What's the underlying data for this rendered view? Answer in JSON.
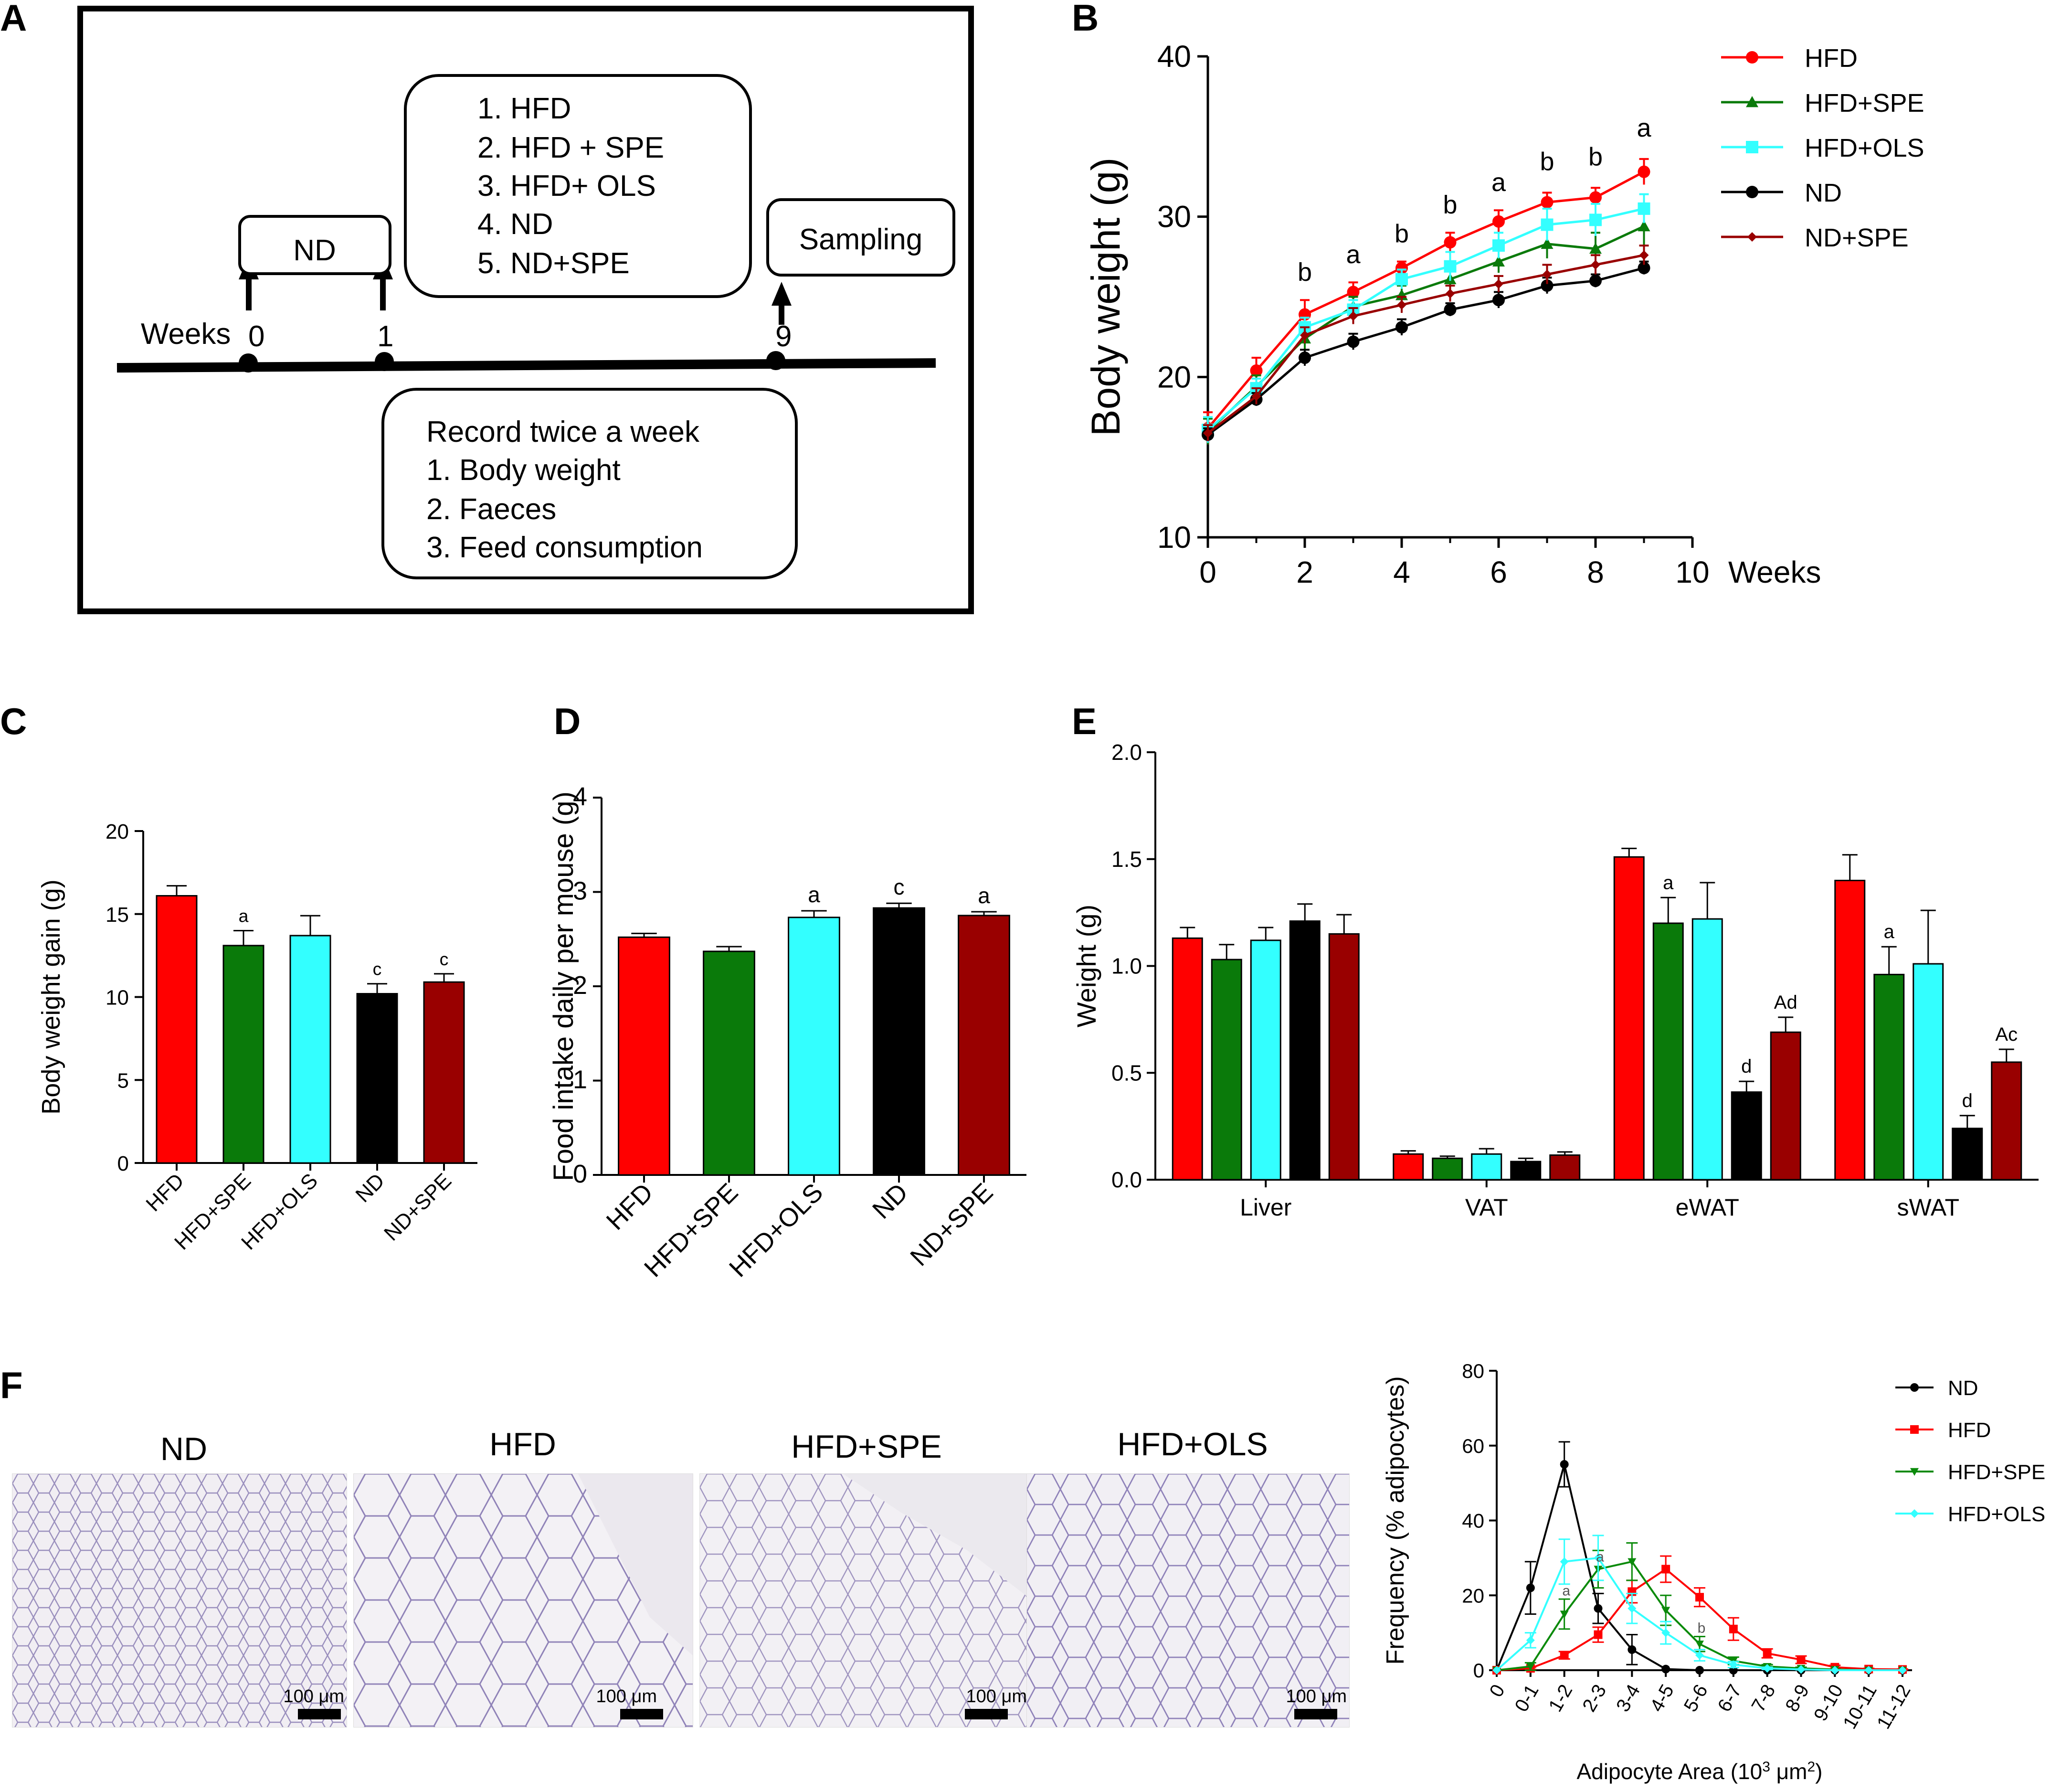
{
  "panel_labels": {
    "a": "A",
    "b": "B",
    "c": "C",
    "d": "D",
    "e": "E",
    "f": "F"
  },
  "panel_a": {
    "weeks_label": "Weeks",
    "timeline_ticks": [
      "0",
      "1",
      "9"
    ],
    "nd_box": "ND",
    "groups_box": [
      "1. HFD",
      "2. HFD + SPE",
      "3. HFD+ OLS",
      "4. ND",
      "5. ND+SPE"
    ],
    "sampling_box": "Sampling",
    "record_box": [
      "Record twice a week",
      "1. Body weight",
      "2. Faeces",
      "3. Feed consumption"
    ]
  },
  "colors": {
    "HFD": "#ff0000",
    "HFD+SPE": "#0a7a0a",
    "HFD+OLS": "#33ffff",
    "ND": "#000000",
    "ND+SPE": "#990000",
    "F_HFD+SPE": "#0a8a0a"
  },
  "micrographs": {
    "titles": [
      "ND",
      "HFD",
      "HFD+SPE",
      "HFD+OLS"
    ],
    "scale_label": "100 μm"
  },
  "chart_data": [
    {
      "id": "B",
      "type": "line",
      "ylabel": "Body weight (g)",
      "xlabel": "Weeks",
      "xlim": [
        0,
        10
      ],
      "ylim": [
        10,
        40
      ],
      "xticks": [
        "0",
        "2",
        "4",
        "6",
        "8",
        "10"
      ],
      "yticks": [
        "10",
        "20",
        "30",
        "40"
      ],
      "x": [
        0,
        1,
        2,
        3,
        4,
        5,
        6,
        7,
        8,
        9
      ],
      "series": [
        {
          "name": "HFD",
          "values": [
            16.8,
            20.4,
            23.9,
            25.3,
            26.8,
            28.4,
            29.7,
            30.9,
            31.2,
            32.8
          ],
          "errors": [
            1.0,
            0.8,
            0.9,
            0.6,
            0.4,
            0.6,
            0.7,
            0.6,
            0.6,
            0.8
          ]
        },
        {
          "name": "HFD+SPE",
          "values": [
            16.6,
            19.4,
            22.4,
            24.4,
            25.1,
            26.1,
            27.2,
            28.3,
            28.0,
            29.4
          ],
          "errors": [
            0.8,
            0.7,
            0.8,
            0.6,
            0.6,
            0.7,
            0.7,
            0.9,
            1.0,
            1.4
          ]
        },
        {
          "name": "HFD+OLS",
          "values": [
            16.7,
            19.3,
            23.1,
            24.2,
            26.1,
            26.9,
            28.2,
            29.5,
            29.8,
            30.5
          ],
          "errors": [
            0.8,
            0.6,
            0.6,
            0.6,
            0.6,
            0.9,
            0.8,
            1.0,
            1.0,
            0.9
          ]
        },
        {
          "name": "ND",
          "values": [
            16.4,
            18.6,
            21.2,
            22.2,
            23.1,
            24.2,
            24.8,
            25.7,
            26.0,
            26.8
          ],
          "errors": [
            0.4,
            0.4,
            0.5,
            0.5,
            0.5,
            0.4,
            0.5,
            0.5,
            0.4,
            0.4
          ]
        },
        {
          "name": "ND+SPE",
          "values": [
            16.5,
            18.8,
            22.6,
            23.8,
            24.5,
            25.2,
            25.8,
            26.4,
            27.0,
            27.6
          ],
          "errors": [
            0.5,
            0.5,
            0.5,
            0.5,
            0.5,
            0.5,
            0.5,
            0.6,
            0.6,
            0.6
          ]
        }
      ],
      "annotations": [
        {
          "x": 2,
          "text": "b"
        },
        {
          "x": 3,
          "text": "a"
        },
        {
          "x": 4,
          "text": "b"
        },
        {
          "x": 5,
          "text": "b"
        },
        {
          "x": 6,
          "text": "a"
        },
        {
          "x": 7,
          "text": "b"
        },
        {
          "x": 8,
          "text": "b"
        },
        {
          "x": 9,
          "text": "a"
        }
      ],
      "legend": "top-right"
    },
    {
      "id": "C",
      "type": "bar",
      "ylabel": "Body weight gain (g)",
      "ylim": [
        0,
        20
      ],
      "yticks": [
        "0",
        "5",
        "10",
        "15",
        "20"
      ],
      "categories": [
        "HFD",
        "HFD+SPE",
        "HFD+OLS",
        "ND",
        "ND+SPE"
      ],
      "values": [
        16.1,
        13.1,
        13.7,
        10.2,
        10.9
      ],
      "errors": [
        0.6,
        0.9,
        1.2,
        0.6,
        0.5
      ],
      "labels": [
        "",
        "a",
        "",
        "c",
        "c"
      ]
    },
    {
      "id": "D",
      "type": "bar",
      "ylabel": "Food intake daily per mouse (g)",
      "ylim": [
        0,
        4
      ],
      "yticks": [
        "0",
        "1",
        "2",
        "3",
        "4"
      ],
      "categories": [
        "HFD",
        "HFD+SPE",
        "HFD+OLS",
        "ND",
        "ND+SPE"
      ],
      "values": [
        2.52,
        2.37,
        2.73,
        2.83,
        2.75
      ],
      "errors": [
        0.04,
        0.05,
        0.07,
        0.05,
        0.04
      ],
      "labels": [
        "",
        "",
        "a",
        "c",
        "a"
      ]
    },
    {
      "id": "E",
      "type": "bar",
      "ylabel": "Weight (g)",
      "ylim": [
        0,
        2.0
      ],
      "yticks": [
        "0.0",
        "0.5",
        "1.0",
        "1.5",
        "2.0"
      ],
      "categories": [
        "Liver",
        "VAT",
        "eWAT",
        "sWAT"
      ],
      "series": [
        {
          "name": "HFD",
          "values": [
            1.13,
            0.12,
            1.51,
            1.4
          ],
          "errors": [
            0.05,
            0.015,
            0.04,
            0.12
          ],
          "labels": [
            "",
            "",
            "",
            ""
          ]
        },
        {
          "name": "HFD+SPE",
          "values": [
            1.03,
            0.1,
            1.2,
            0.96
          ],
          "errors": [
            0.07,
            0.01,
            0.12,
            0.13
          ],
          "labels": [
            "",
            "",
            "a",
            "a"
          ]
        },
        {
          "name": "HFD+OLS",
          "values": [
            1.12,
            0.12,
            1.22,
            1.01
          ],
          "errors": [
            0.06,
            0.025,
            0.17,
            0.25
          ],
          "labels": [
            "",
            "",
            "",
            ""
          ]
        },
        {
          "name": "ND",
          "values": [
            1.21,
            0.085,
            0.41,
            0.24
          ],
          "errors": [
            0.08,
            0.015,
            0.05,
            0.06
          ],
          "labels": [
            "",
            "",
            "d",
            "d"
          ]
        },
        {
          "name": "ND+SPE",
          "values": [
            1.15,
            0.115,
            0.69,
            0.55
          ],
          "errors": [
            0.09,
            0.015,
            0.07,
            0.06
          ],
          "labels": [
            "",
            "",
            "Ad",
            "Ac"
          ]
        }
      ]
    },
    {
      "id": "F",
      "type": "line",
      "ylabel": "Frequency (% adipocytes)",
      "xlabel_main": "Adipocyte Area (10",
      "xlabel_sup": "3",
      "xlabel_unit": " μm",
      "xlabel_sup2": "2",
      "xlabel_end": ")",
      "ylim": [
        0,
        80
      ],
      "yticks": [
        "0",
        "20",
        "40",
        "60",
        "80"
      ],
      "categories": [
        "0",
        "0-1",
        "1-2",
        "2-3",
        "3-4",
        "4-5",
        "5-6",
        "6-7",
        "7-8",
        "8-9",
        "9-10",
        "10-11",
        "11-12"
      ],
      "series": [
        {
          "name": "ND",
          "values": [
            0,
            22,
            55,
            16.5,
            5.5,
            0.3,
            0,
            0,
            0,
            0,
            0,
            0,
            0
          ],
          "errors": [
            0,
            7,
            6,
            4,
            4,
            0,
            0,
            0,
            0,
            0,
            0,
            0,
            0
          ]
        },
        {
          "name": "HFD",
          "values": [
            0,
            0.5,
            4,
            9.5,
            21,
            27,
            19.5,
            11,
            4.5,
            2.8,
            0.8,
            0.3,
            0.2
          ],
          "errors": [
            0,
            0.3,
            1,
            2,
            3,
            3.5,
            2.5,
            3,
            1.2,
            1,
            0.5,
            0.2,
            0.1
          ]
        },
        {
          "name": "HFD+SPE",
          "values": [
            0,
            1,
            15,
            27,
            29,
            16,
            7,
            2.5,
            1,
            0.5,
            0.2,
            0,
            0
          ],
          "errors": [
            0,
            1,
            4,
            5,
            5,
            4,
            2,
            1,
            0.5,
            0.3,
            0.1,
            0,
            0
          ]
        },
        {
          "name": "HFD+OLS",
          "values": [
            0,
            8,
            29,
            30,
            16.5,
            10,
            4,
            1.5,
            0.5,
            0.2,
            0,
            0,
            0
          ],
          "errors": [
            0,
            2,
            6,
            6,
            4,
            3,
            1.5,
            0.8,
            0.3,
            0.1,
            0,
            0,
            0
          ]
        }
      ],
      "annotations": [
        {
          "x": "1-2",
          "text": "a"
        },
        {
          "x": "2-3",
          "text": "a"
        },
        {
          "x": "5-6",
          "text": "b"
        }
      ],
      "legend": "top-right"
    }
  ]
}
